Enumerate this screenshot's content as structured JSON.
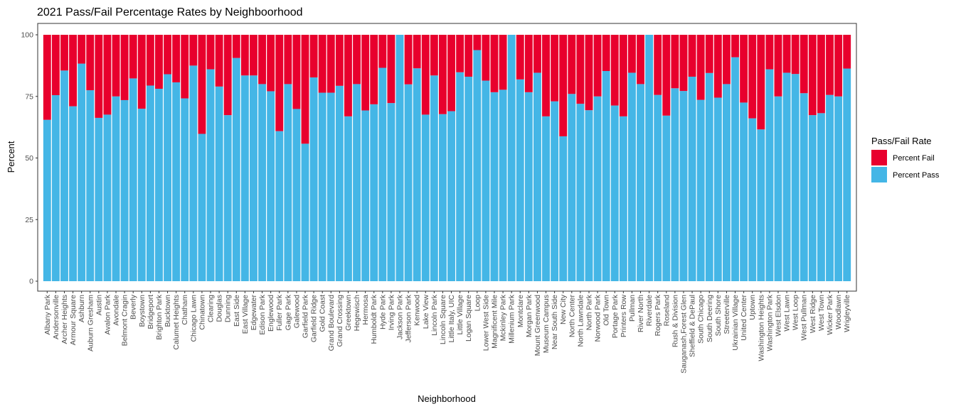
{
  "chart_data": {
    "type": "bar",
    "stacked": true,
    "title": "2021 Pass/Fail Percentage Rates by Neighboorhood",
    "xlabel": "Neighborhood",
    "ylabel": "Percent",
    "ylim": [
      0,
      100
    ],
    "yticks": [
      "0",
      "25",
      "50",
      "75",
      "100"
    ],
    "grid": false,
    "legend": {
      "title": "Pass/Fail Rate",
      "position": "right",
      "entries": [
        {
          "label": "Percent Fail",
          "color": "#E8002D"
        },
        {
          "label": "Percent Pass",
          "color": "#44B6E6"
        }
      ]
    },
    "categories": [
      "Albany Park",
      "Andersonville",
      "Archer Heights",
      "Armour Square",
      "Ashburn",
      "Auburn Gresham",
      "Austin",
      "Avalon Park",
      "Avondale",
      "Belmont Cragin",
      "Beverly",
      "Boystown",
      "Bridgeport",
      "Brighton Park",
      "Bucktown",
      "Calumet Heights",
      "Chatham",
      "Chicago Lawn",
      "Chinatown",
      "Clearing",
      "Douglas",
      "Dunning",
      "East Side",
      "East Village",
      "Edgewater",
      "Edison Park",
      "Englewood",
      "Fuller Park",
      "Gage Park",
      "Galewood",
      "Garfield Park",
      "Garfield Ridge",
      "Gold Coast",
      "Grand Boulevard",
      "Grand Crossing",
      "Greektown",
      "Hegewisch",
      "Hermosa",
      "Humboldt Park",
      "Hyde Park",
      "Irving Park",
      "Jackson Park",
      "Jefferson Park",
      "Kenwood",
      "Lake View",
      "Lincoln Park",
      "Lincoln Square",
      "Little Italy, UIC",
      "Little Village",
      "Logan Square",
      "Loop",
      "Lower West Side",
      "Magnificent Mile",
      "Mckinley Park",
      "Millenium Park",
      "Montclare",
      "Morgan Park",
      "Mount Greenwood",
      "Museum Campus",
      "Near South Side",
      "New City",
      "North Center",
      "North Lawndale",
      "North Park",
      "Norwood Park",
      "Old Town",
      "Portage Park",
      "Printers Row",
      "Pullman",
      "River North",
      "Riverdale",
      "Rogers Park",
      "Roseland",
      "Rush & Division",
      "Sauganash,Forest Glen",
      "Sheffield & DePaul",
      "South Chicago",
      "South Deering",
      "South Shore",
      "Streeterville",
      "Ukrainian Village",
      "United Center",
      "Uptown",
      "Washington Heights",
      "Washington Park",
      "West Elsdon",
      "West Lawn",
      "West Loop",
      "West Pullman",
      "West Ridge",
      "West Town",
      "Wicker Park",
      "Woodlawn",
      "Wrigleyville"
    ],
    "series": [
      {
        "name": "Percent Pass",
        "color": "#44B6E6",
        "values": [
          65.5,
          75.5,
          85.5,
          71,
          88.3,
          77.5,
          66.3,
          67.6,
          75,
          73.5,
          82.3,
          70,
          79.4,
          78.1,
          84,
          80.7,
          74.2,
          87.5,
          59.8,
          86,
          79,
          67.4,
          90.6,
          83.5,
          83.5,
          80,
          77.1,
          60.9,
          80,
          69.9,
          55.8,
          82.7,
          76.5,
          76.5,
          79.3,
          66.9,
          80,
          69.3,
          71.8,
          86.6,
          72.3,
          100,
          79.9,
          86.4,
          67.6,
          83.5,
          67.8,
          69,
          84.8,
          83,
          93.8,
          81.4,
          76.7,
          77.7,
          100,
          81.9,
          76.7,
          84.6,
          66.9,
          73,
          58.8,
          76,
          72,
          69.4,
          75,
          85.3,
          71.3,
          66.9,
          84.6,
          80,
          100,
          75.6,
          67.2,
          78.3,
          77.2,
          83,
          73.6,
          84.5,
          74.5,
          80,
          90.9,
          72.5,
          66.1,
          61.6,
          86,
          75,
          84.6,
          84.1,
          76.3,
          67.4,
          68.2,
          75.6,
          75,
          86.3
        ]
      },
      {
        "name": "Percent Fail",
        "color": "#E8002D",
        "values": [
          34.5,
          24.5,
          14.5,
          29,
          11.7,
          22.5,
          33.7,
          32.4,
          25,
          26.5,
          17.7,
          30,
          20.6,
          21.9,
          16,
          19.3,
          25.8,
          12.5,
          40.2,
          14,
          21,
          32.6,
          9.4,
          16.5,
          16.5,
          20,
          22.9,
          39.1,
          20,
          30.1,
          44.2,
          17.3,
          23.5,
          23.5,
          20.7,
          33.1,
          20,
          30.7,
          28.2,
          13.4,
          27.7,
          0,
          20.1,
          13.6,
          32.4,
          16.5,
          32.2,
          31,
          15.2,
          17,
          6.2,
          18.6,
          23.3,
          22.3,
          0,
          18.1,
          23.3,
          15.4,
          33.1,
          27,
          41.2,
          24,
          28,
          30.6,
          25,
          14.7,
          28.7,
          33.1,
          15.4,
          20,
          0,
          24.4,
          32.8,
          21.7,
          22.8,
          17,
          26.4,
          15.5,
          25.5,
          20,
          9.1,
          27.5,
          33.9,
          38.4,
          14,
          25,
          15.4,
          15.9,
          23.7,
          32.6,
          31.8,
          24.4,
          25,
          13.7
        ]
      }
    ]
  }
}
